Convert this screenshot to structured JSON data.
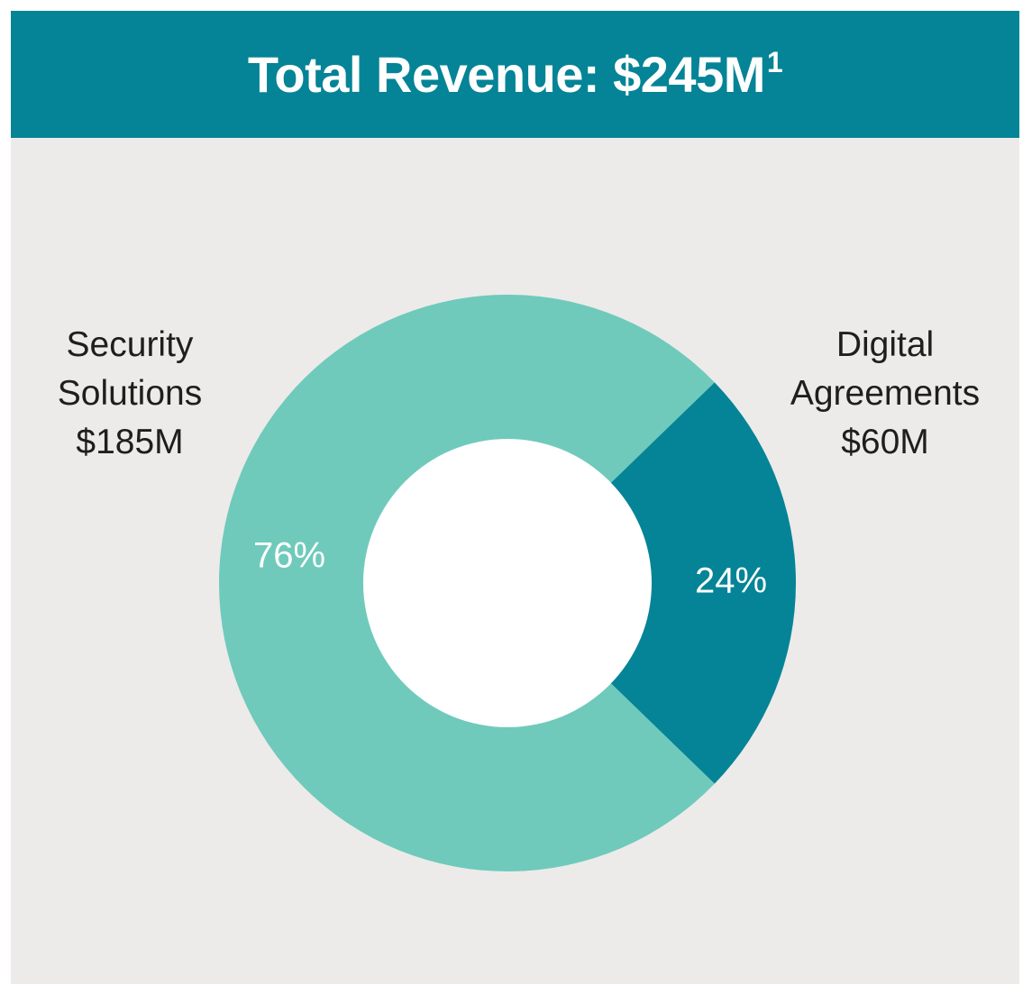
{
  "header": {
    "title": "Total Revenue: $245M",
    "title_footnote": "1"
  },
  "colors": {
    "background": "#ecebe9",
    "header": "#048496",
    "security_solutions": "#6fcabb",
    "digital_agreements": "#048496",
    "hole": "#ffffff"
  },
  "chart_data": {
    "type": "pie",
    "title": "Total Revenue: $245M",
    "donut": true,
    "legend": "none",
    "slices": [
      {
        "name_lines": [
          "Security",
          "Solutions"
        ],
        "amount": "$185M",
        "value": 185,
        "percent_label": "76%",
        "color": "#6fcabb"
      },
      {
        "name_lines": [
          "Digital",
          "Agreements"
        ],
        "amount": "$60M",
        "value": 60,
        "percent_label": "24%",
        "color": "#048496"
      }
    ]
  }
}
